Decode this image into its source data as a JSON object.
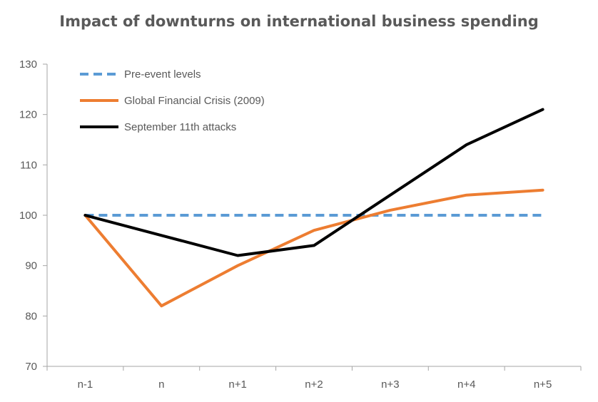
{
  "chart_data": {
    "type": "line",
    "title": "Impact of downturns on international business spending",
    "xlabel": "",
    "ylabel": "",
    "categories": [
      "n-1",
      "n",
      "n+1",
      "n+2",
      "n+3",
      "n+4",
      "n+5"
    ],
    "ylim": [
      70,
      130
    ],
    "yticks": [
      70,
      80,
      90,
      100,
      110,
      120,
      130
    ],
    "grid": false,
    "legend_position": "top-left",
    "series": [
      {
        "name": "Pre-event levels",
        "color": "#5B9BD5",
        "style": "dashed",
        "values": [
          100,
          100,
          100,
          100,
          100,
          100,
          100
        ]
      },
      {
        "name": "Global Financial Crisis (2009)",
        "color": "#ED7D31",
        "style": "solid",
        "values": [
          100,
          82,
          90,
          97,
          101,
          104,
          105
        ]
      },
      {
        "name": "September 11th attacks",
        "color": "#000000",
        "style": "solid",
        "values": [
          100,
          96,
          92,
          94,
          104,
          114,
          121
        ]
      }
    ]
  }
}
